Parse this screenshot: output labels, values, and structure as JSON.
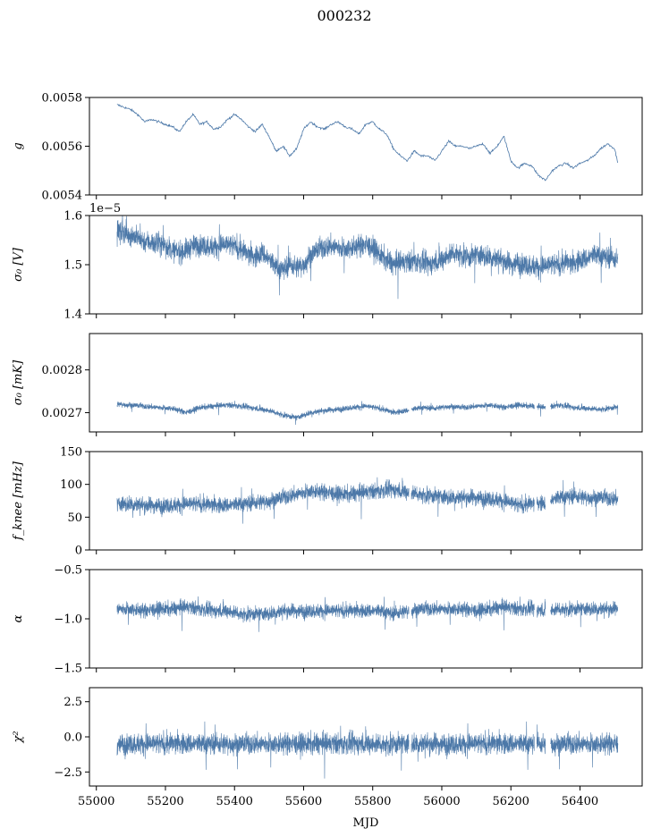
{
  "figure": {
    "title": "000232",
    "xlabel": "MJD"
  },
  "chart_data": [
    {
      "type": "line",
      "ylabel": "g",
      "xlim": [
        54980,
        56580
      ],
      "ylim": [
        0.0054,
        0.0058
      ],
      "yticks": [
        0.0054,
        0.0056,
        0.0058
      ],
      "ytick_labels": [
        "0.0054",
        "0.0056",
        "0.0058"
      ],
      "xticks": [
        55000,
        55200,
        55400,
        55600,
        55800,
        56000,
        56200,
        56400
      ],
      "xtick_labels": [],
      "offset_text": "",
      "color": "#4c78a8",
      "series": [
        {
          "x": [
            55060,
            55080,
            55100,
            55120,
            55140,
            55160,
            55180,
            55200,
            55220,
            55240,
            55260,
            55280,
            55300,
            55320,
            55340,
            55360,
            55380,
            55400,
            55420,
            55440,
            55460,
            55480,
            55500,
            55520,
            55540,
            55560,
            55580,
            55600,
            55620,
            55640,
            55660,
            55680,
            55700,
            55720,
            55740,
            55760,
            55780,
            55800,
            55820,
            55840,
            55860,
            55880,
            55900,
            55920,
            55940,
            55960,
            55980,
            56000,
            56020,
            56040,
            56060,
            56080,
            56100,
            56120,
            56140,
            56160,
            56180,
            56200,
            56220,
            56240,
            56260,
            56280,
            56300,
            56320,
            56340,
            56360,
            56380,
            56400,
            56420,
            56440,
            56460,
            56480,
            56500,
            56510
          ],
          "values": [
            0.00577,
            0.00576,
            0.00575,
            0.00573,
            0.0057,
            0.00571,
            0.0057,
            0.00569,
            0.00568,
            0.00566,
            0.0057,
            0.00573,
            0.00569,
            0.0057,
            0.00567,
            0.00568,
            0.00571,
            0.00573,
            0.00571,
            0.00568,
            0.00566,
            0.00569,
            0.00564,
            0.00558,
            0.0056,
            0.00556,
            0.00559,
            0.00567,
            0.0057,
            0.00568,
            0.00567,
            0.00569,
            0.0057,
            0.00568,
            0.00567,
            0.00565,
            0.00569,
            0.0057,
            0.00567,
            0.00565,
            0.00559,
            0.00556,
            0.00554,
            0.00558,
            0.00556,
            0.00556,
            0.00554,
            0.00558,
            0.00562,
            0.0056,
            0.0056,
            0.00559,
            0.0056,
            0.00561,
            0.00557,
            0.0056,
            0.00564,
            0.00554,
            0.00551,
            0.00553,
            0.00552,
            0.00548,
            0.00546,
            0.0055,
            0.00552,
            0.00553,
            0.00551,
            0.00553,
            0.00554,
            0.00556,
            0.00559,
            0.00561,
            0.00559,
            0.00553
          ]
        }
      ]
    },
    {
      "type": "line",
      "ylabel": "σ₀ [V]",
      "xlim": [
        54980,
        56580
      ],
      "ylim": [
        1.4e-05,
        1.6e-05
      ],
      "yticks": [
        1.4e-05,
        1.5e-05,
        1.6e-05
      ],
      "ytick_labels": [
        "1.4",
        "1.5",
        "1.6"
      ],
      "xticks": [
        55000,
        55200,
        55400,
        55600,
        55800,
        56000,
        56200,
        56400
      ],
      "xtick_labels": [],
      "offset_text": "1e−5",
      "color": "#4c78a8",
      "noise_band": 4e-07,
      "series": [
        {
          "x": [
            55060,
            55080,
            55100,
            55120,
            55140,
            55160,
            55180,
            55200,
            55220,
            55240,
            55260,
            55280,
            55300,
            55320,
            55340,
            55360,
            55380,
            55400,
            55420,
            55440,
            55460,
            55480,
            55500,
            55520,
            55540,
            55560,
            55580,
            55600,
            55620,
            55640,
            55660,
            55680,
            55700,
            55720,
            55740,
            55760,
            55780,
            55800,
            55820,
            55840,
            55860,
            55880,
            55900,
            55920,
            55940,
            55960,
            55980,
            56000,
            56020,
            56040,
            56060,
            56080,
            56100,
            56120,
            56140,
            56160,
            56180,
            56200,
            56220,
            56240,
            56260,
            56280,
            56300,
            56320,
            56340,
            56360,
            56380,
            56400,
            56420,
            56440,
            56460,
            56480,
            56500,
            56510
          ],
          "values": [
            1.572e-05,
            1.565e-05,
            1.56e-05,
            1.555e-05,
            1.548e-05,
            1.545e-05,
            1.543e-05,
            1.54e-05,
            1.53e-05,
            1.525e-05,
            1.53e-05,
            1.538e-05,
            1.54e-05,
            1.538e-05,
            1.536e-05,
            1.54e-05,
            1.54e-05,
            1.538e-05,
            1.53e-05,
            1.52e-05,
            1.515e-05,
            1.525e-05,
            1.51e-05,
            1.495e-05,
            1.49e-05,
            1.5e-05,
            1.495e-05,
            1.5e-05,
            1.52e-05,
            1.53e-05,
            1.535e-05,
            1.538e-05,
            1.535e-05,
            1.532e-05,
            1.535e-05,
            1.538e-05,
            1.54e-05,
            1.535e-05,
            1.52e-05,
            1.51e-05,
            1.5e-05,
            1.505e-05,
            1.505e-05,
            1.508e-05,
            1.505e-05,
            1.5e-05,
            1.505e-05,
            1.51e-05,
            1.52e-05,
            1.525e-05,
            1.52e-05,
            1.515e-05,
            1.52e-05,
            1.518e-05,
            1.515e-05,
            1.512e-05,
            1.508e-05,
            1.5e-05,
            1.505e-05,
            1.5e-05,
            1.498e-05,
            1.495e-05,
            1.497e-05,
            1.5e-05,
            1.5e-05,
            1.505e-05,
            1.5e-05,
            1.51e-05,
            1.512e-05,
            1.52e-05,
            1.518e-05,
            1.515e-05,
            1.512e-05,
            1.51e-05
          ]
        }
      ]
    },
    {
      "type": "line",
      "ylabel": "σ₀ [mK]",
      "xlim": [
        54980,
        56580
      ],
      "ylim": [
        0.002655,
        0.002885
      ],
      "yticks": [
        0.0027,
        0.0028
      ],
      "ytick_labels": [
        "0.0027",
        "0.0028"
      ],
      "xticks": [
        55000,
        55200,
        55400,
        55600,
        55800,
        56000,
        56200,
        56400
      ],
      "xtick_labels": [],
      "offset_text": "",
      "color": "#4c78a8",
      "noise_band": 1.2e-05,
      "series": [
        {
          "x": [
            55060,
            55100,
            55140,
            55180,
            55220,
            55260,
            55300,
            55340,
            55380,
            55420,
            55460,
            55500,
            55540,
            55580,
            55620,
            55660,
            55700,
            55740,
            55780,
            55820,
            55860,
            55900,
            55940,
            55980,
            56020,
            56060,
            56100,
            56140,
            56180,
            56220,
            56260,
            56300,
            56340,
            56380,
            56420,
            56460,
            56500,
            56510
          ],
          "values": [
            0.00272,
            0.002718,
            0.002715,
            0.002712,
            0.00271,
            0.0027,
            0.002712,
            0.002715,
            0.002718,
            0.002715,
            0.00271,
            0.002705,
            0.002695,
            0.002688,
            0.0027,
            0.002705,
            0.002708,
            0.002712,
            0.002715,
            0.00271,
            0.0027,
            0.002705,
            0.002712,
            0.00271,
            0.002715,
            0.002712,
            0.002715,
            0.002718,
            0.002712,
            0.002718,
            0.002715,
            0.002712,
            0.002718,
            0.002712,
            0.00271,
            0.002708,
            0.002712,
            0.002712
          ]
        }
      ]
    },
    {
      "type": "line",
      "ylabel": "f_knee [mHz]",
      "xlim": [
        54980,
        56580
      ],
      "ylim": [
        0,
        150
      ],
      "yticks": [
        0,
        50,
        100,
        150
      ],
      "ytick_labels": [
        "0",
        "50",
        "100",
        "150"
      ],
      "xticks": [
        55000,
        55200,
        55400,
        55600,
        55800,
        56000,
        56200,
        56400
      ],
      "xtick_labels": [],
      "offset_text": "",
      "color": "#4c78a8",
      "noise_band": 22,
      "series": [
        {
          "x": [
            55060,
            55100,
            55140,
            55180,
            55220,
            55260,
            55300,
            55340,
            55380,
            55420,
            55460,
            55500,
            55540,
            55580,
            55620,
            55660,
            55700,
            55740,
            55780,
            55820,
            55860,
            55900,
            55940,
            55980,
            56020,
            56060,
            56100,
            56140,
            56180,
            56220,
            56260,
            56300,
            56340,
            56380,
            56420,
            56460,
            56500,
            56510
          ],
          "values": [
            70,
            70,
            68,
            68,
            68,
            70,
            70,
            68,
            68,
            70,
            72,
            75,
            80,
            85,
            90,
            88,
            85,
            85,
            88,
            90,
            92,
            88,
            85,
            82,
            80,
            80,
            80,
            78,
            75,
            68,
            70,
            72,
            80,
            82,
            80,
            80,
            78,
            78
          ]
        }
      ]
    },
    {
      "type": "line",
      "ylabel": "α",
      "xlim": [
        54980,
        56580
      ],
      "ylim": [
        -1.5,
        -0.5
      ],
      "yticks": [
        -1.5,
        -1.0,
        -0.5
      ],
      "ytick_labels": [
        "−1.5",
        "−1.0",
        "−0.5"
      ],
      "xticks": [
        55000,
        55200,
        55400,
        55600,
        55800,
        56000,
        56200,
        56400
      ],
      "xtick_labels": [],
      "offset_text": "",
      "color": "#4c78a8",
      "noise_band": 0.13,
      "series": [
        {
          "x": [
            55060,
            55100,
            55140,
            55180,
            55220,
            55260,
            55300,
            55340,
            55380,
            55420,
            55460,
            55500,
            55540,
            55580,
            55620,
            55660,
            55700,
            55740,
            55780,
            55820,
            55860,
            55900,
            55940,
            55980,
            56020,
            56060,
            56100,
            56140,
            56180,
            56220,
            56260,
            56300,
            56340,
            56380,
            56420,
            56460,
            56500,
            56510
          ],
          "values": [
            -0.9,
            -0.9,
            -0.92,
            -0.9,
            -0.9,
            -0.88,
            -0.9,
            -0.92,
            -0.92,
            -0.95,
            -0.95,
            -0.95,
            -0.92,
            -0.92,
            -0.92,
            -0.92,
            -0.92,
            -0.92,
            -0.92,
            -0.92,
            -0.95,
            -0.92,
            -0.9,
            -0.9,
            -0.9,
            -0.9,
            -0.92,
            -0.9,
            -0.88,
            -0.9,
            -0.9,
            -0.92,
            -0.9,
            -0.9,
            -0.9,
            -0.9,
            -0.9,
            -0.9
          ]
        }
      ]
    },
    {
      "type": "line",
      "ylabel": "χ²",
      "xlim": [
        54980,
        56580
      ],
      "ylim": [
        -3.5,
        3.5
      ],
      "yticks": [
        -2.5,
        0.0,
        2.5
      ],
      "ytick_labels": [
        "−2.5",
        "0.0",
        "2.5"
      ],
      "xticks": [
        55000,
        55200,
        55400,
        55600,
        55800,
        56000,
        56200,
        56400
      ],
      "xtick_labels": [
        "55000",
        "55200",
        "55400",
        "55600",
        "55800",
        "56000",
        "56200",
        "56400"
      ],
      "offset_text": "",
      "color": "#4c78a8",
      "noise_band": 1.35,
      "series": [
        {
          "x": [
            55060,
            55200,
            55400,
            55600,
            55800,
            56000,
            56200,
            56400,
            56510
          ],
          "values": [
            -0.5,
            -0.5,
            -0.5,
            -0.5,
            -0.5,
            -0.5,
            -0.5,
            -0.5,
            -0.5
          ]
        }
      ]
    }
  ]
}
